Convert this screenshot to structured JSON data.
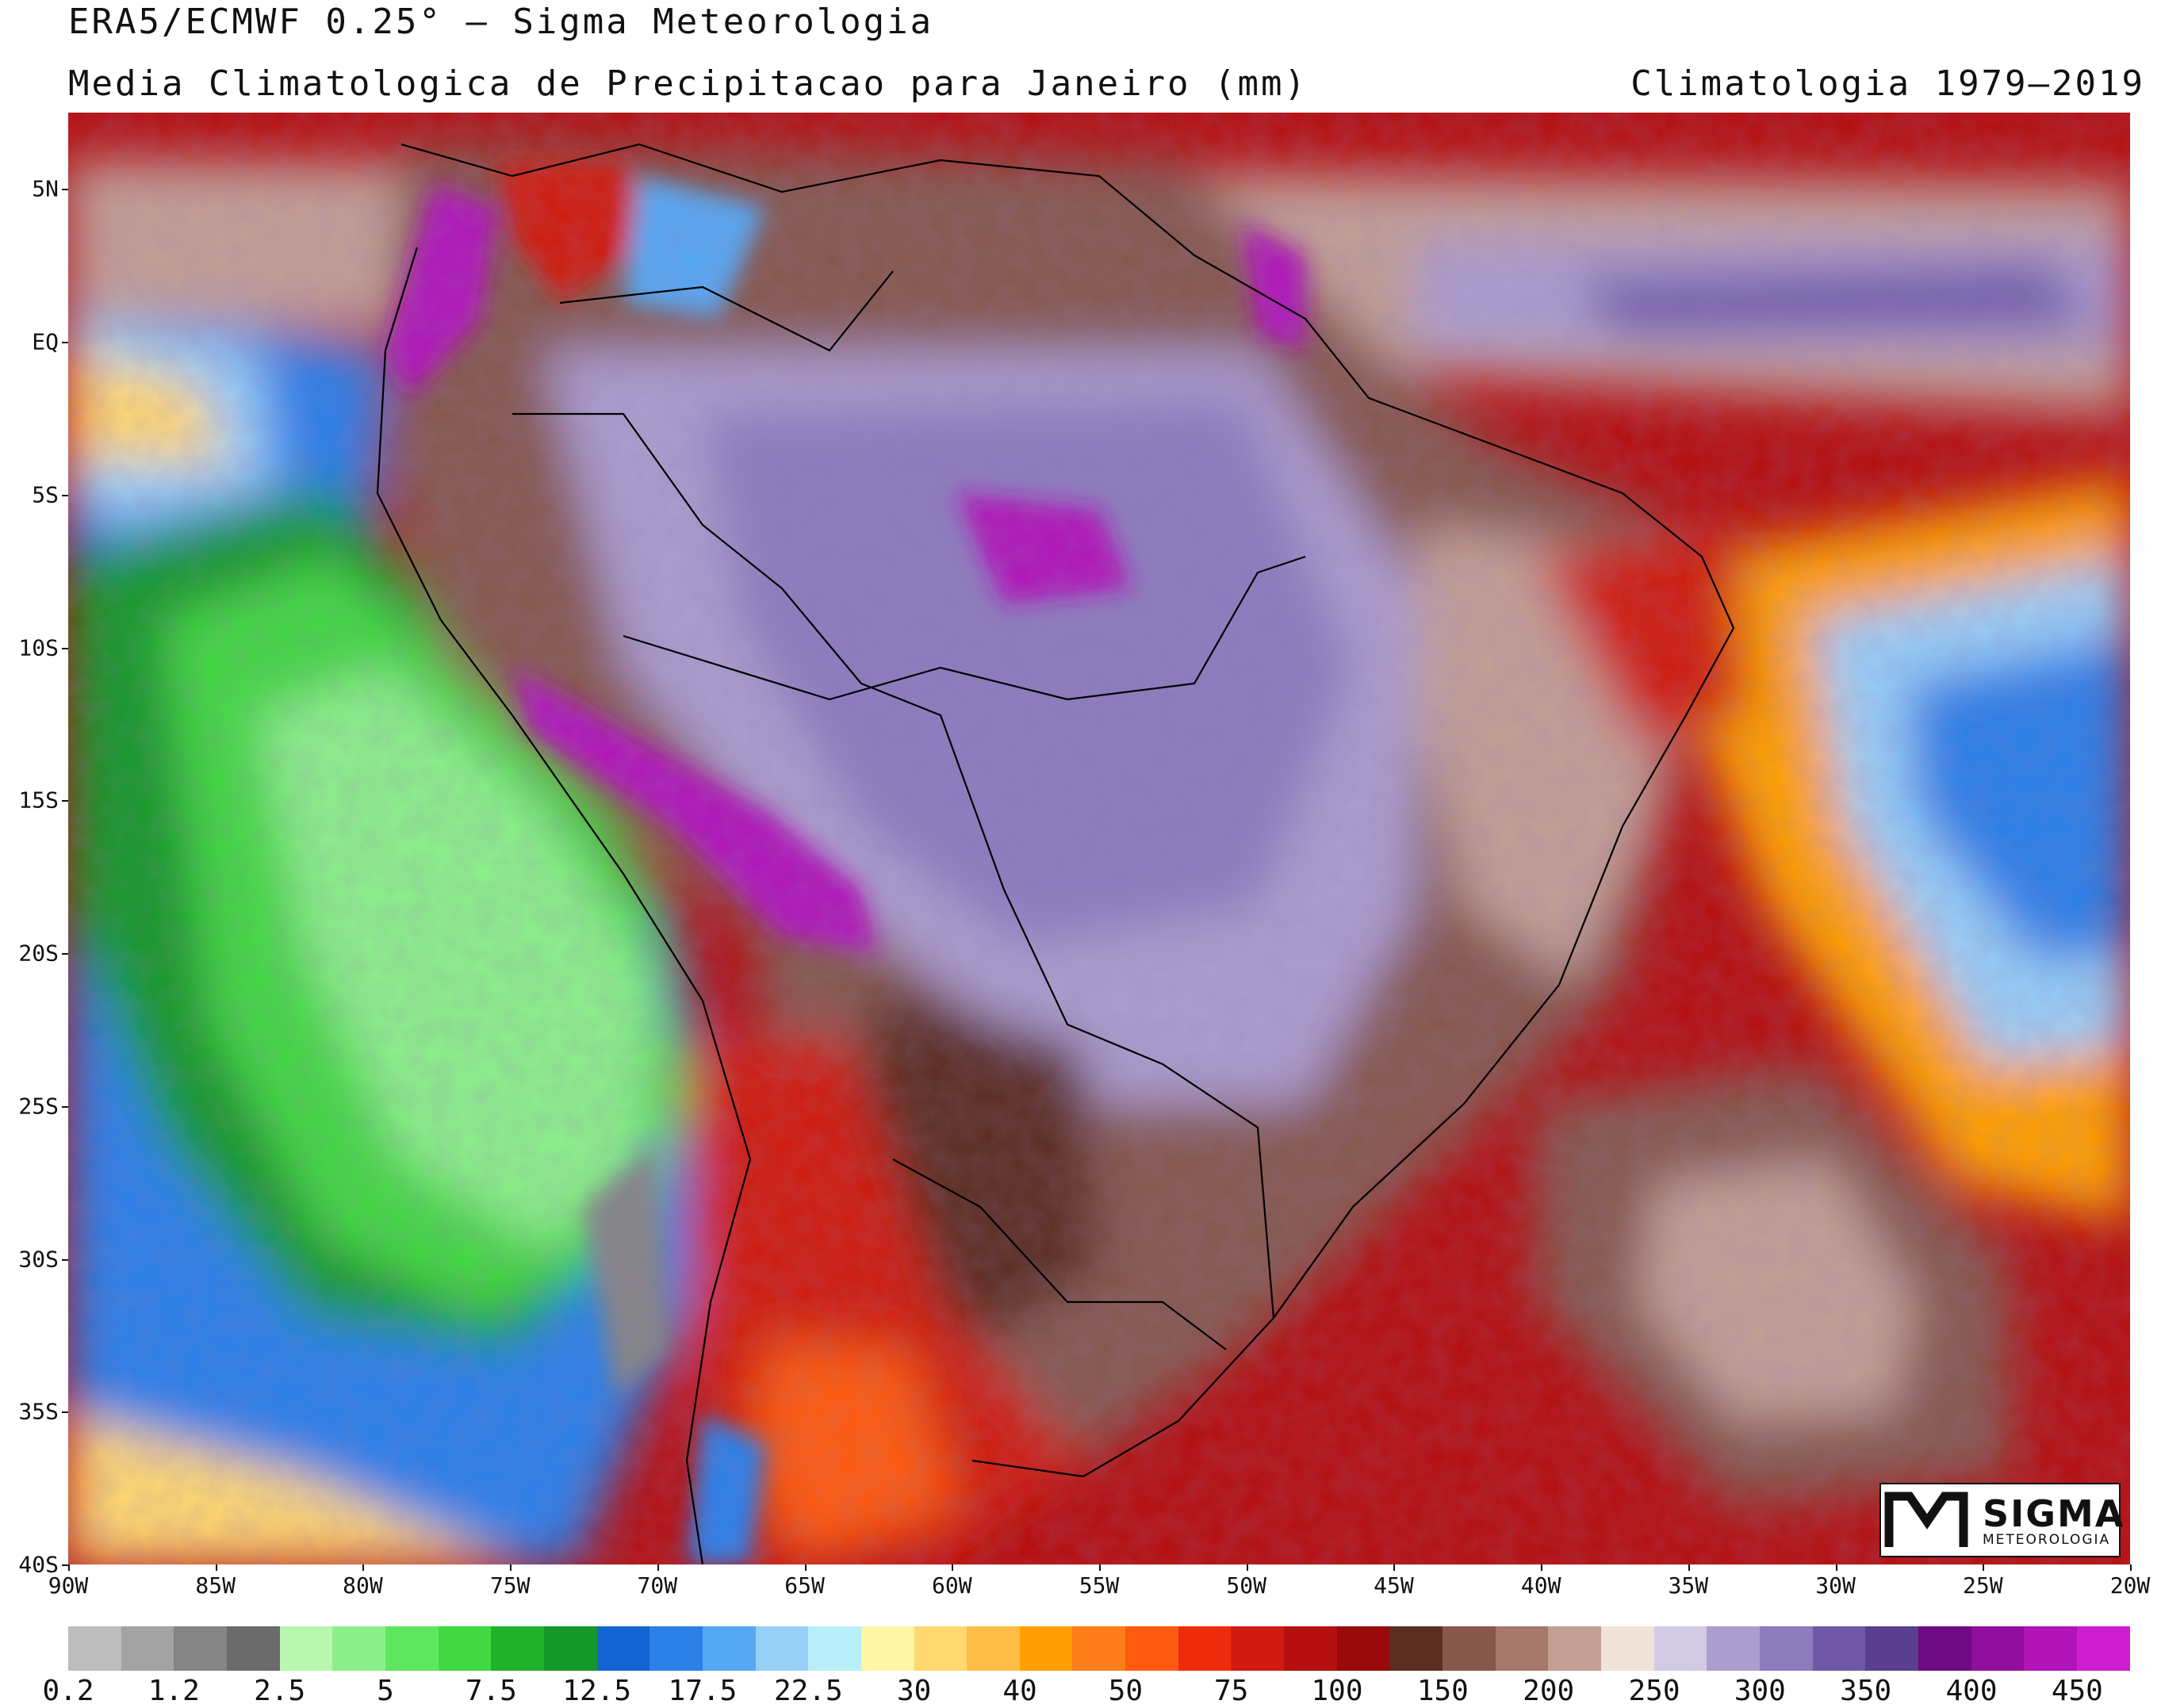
{
  "header": {
    "title_line1": "ERA5/ECMWF 0.25° – Sigma Meteorologia",
    "title_line2": "Media Climatologica de Precipitacao para Janeiro (mm)",
    "title_right": "Climatologia 1979–2019"
  },
  "map": {
    "projection": "lat-lon",
    "lon_range": [
      -90,
      -20
    ],
    "lat_range": [
      -40,
      7.5
    ],
    "lat_labels": [
      "5N",
      "EQ",
      "5S",
      "10S",
      "15S",
      "20S",
      "25S",
      "30S",
      "35S",
      "40S"
    ],
    "lat_values": [
      5,
      0,
      -5,
      -10,
      -15,
      -20,
      -25,
      -30,
      -35,
      -40
    ],
    "lon_labels": [
      "90W",
      "85W",
      "80W",
      "75W",
      "70W",
      "65W",
      "60W",
      "55W",
      "50W",
      "45W",
      "40W",
      "35W",
      "30W",
      "25W",
      "20W"
    ],
    "lon_values": [
      -90,
      -85,
      -80,
      -75,
      -70,
      -65,
      -60,
      -55,
      -50,
      -45,
      -40,
      -35,
      -30,
      -25,
      -20
    ],
    "borders": "country and state boundaries drawn as thin black lines"
  },
  "colorbar": {
    "unit": "mm",
    "labels": [
      "0.2",
      "1.2",
      "2.5",
      "5",
      "7.5",
      "12.5",
      "17.5",
      "22.5",
      "30",
      "40",
      "50",
      "75",
      "100",
      "150",
      "200",
      "250",
      "300",
      "350",
      "400",
      "450"
    ],
    "colors": [
      "#bdbdbd",
      "#a3a3a3",
      "#858585",
      "#6b6b6b",
      "#b9f7b1",
      "#8cf08a",
      "#5fe65f",
      "#42d943",
      "#20b22a",
      "#14982a",
      "#1463d2",
      "#2b80e8",
      "#56a8f2",
      "#97cff7",
      "#b9eefb",
      "#fff5a5",
      "#ffd870",
      "#ffbd45",
      "#ffa000",
      "#ff7d1a",
      "#ff5a10",
      "#ee2c0c",
      "#d01c10",
      "#b50f0f",
      "#990a0a",
      "#5b2e22",
      "#86584d",
      "#a6776b",
      "#c39f94",
      "#f2e3d9",
      "#d1cbe3",
      "#ab9dcd",
      "#8d7cbe",
      "#7058a9",
      "#593f8e",
      "#6d0a84",
      "#900e9c",
      "#b013b8",
      "#cc1ed0"
    ]
  },
  "logo": {
    "word": "SIGMA",
    "subtitle": "METEOROLOGIA"
  }
}
